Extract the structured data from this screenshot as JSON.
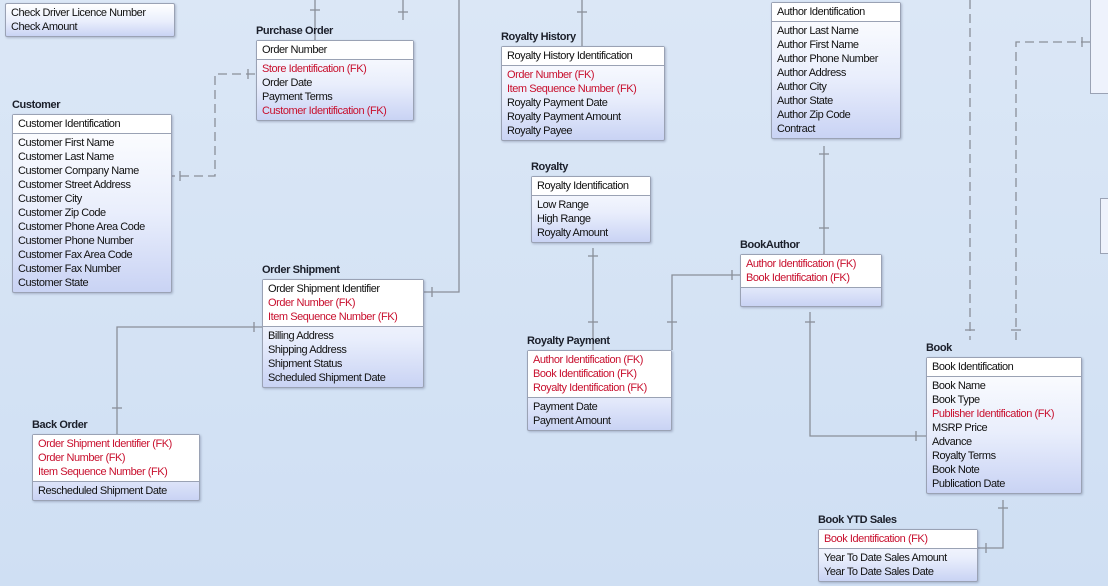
{
  "entities": [
    {
      "keys": [],
      "attrs": [
        {
          "text": "Check Driver Licence Number"
        },
        {
          "text": "Check Amount"
        }
      ]
    },
    {
      "title": "Purchase Order",
      "keys": [
        {
          "text": "Order Number"
        }
      ],
      "attrs": [
        {
          "text": "Store Identification (FK)",
          "fk": true
        },
        {
          "text": "Order Date"
        },
        {
          "text": "Payment Terms"
        },
        {
          "text": "Customer Identification (FK)",
          "fk": true
        }
      ]
    },
    {
      "title": "Customer",
      "keys": [
        {
          "text": "Customer Identification"
        }
      ],
      "attrs": [
        {
          "text": "Customer First Name"
        },
        {
          "text": "Customer Last Name"
        },
        {
          "text": "Customer Company Name"
        },
        {
          "text": "Customer Street Address"
        },
        {
          "text": "Customer City"
        },
        {
          "text": "Customer Zip Code"
        },
        {
          "text": "Customer Phone Area Code"
        },
        {
          "text": "Customer Phone Number"
        },
        {
          "text": "Customer Fax Area Code"
        },
        {
          "text": "Customer Fax Number"
        },
        {
          "text": "Customer State"
        }
      ]
    },
    {
      "title": "Royalty History",
      "keys": [
        {
          "text": "Royalty History Identification"
        }
      ],
      "attrs": [
        {
          "text": "Order Number (FK)",
          "fk": true
        },
        {
          "text": "Item Sequence Number (FK)",
          "fk": true
        },
        {
          "text": "Royalty Payment Date"
        },
        {
          "text": "Royalty Payment Amount"
        },
        {
          "text": "Royalty Payee"
        }
      ]
    },
    {
      "keys": [
        {
          "text": "Author Identification"
        }
      ],
      "attrs": [
        {
          "text": "Author Last Name"
        },
        {
          "text": "Author First Name"
        },
        {
          "text": "Author Phone Number"
        },
        {
          "text": "Author Address"
        },
        {
          "text": "Author City"
        },
        {
          "text": "Author State"
        },
        {
          "text": "Author Zip Code"
        },
        {
          "text": "Contract"
        }
      ]
    },
    {
      "title": "Royalty",
      "keys": [
        {
          "text": "Royalty Identification"
        }
      ],
      "attrs": [
        {
          "text": "Low Range"
        },
        {
          "text": "High Range"
        },
        {
          "text": "Royalty Amount"
        }
      ]
    },
    {
      "title": "BookAuthor",
      "keys": [
        {
          "text": "Author Identification (FK)",
          "fk": true
        },
        {
          "text": "Book Identification (FK)",
          "fk": true
        }
      ],
      "attrs": []
    },
    {
      "title": "Order Shipment",
      "keys": [
        {
          "text": "Order Shipment Identifier"
        },
        {
          "text": "Order Number (FK)",
          "fk": true
        },
        {
          "text": "Item Sequence Number (FK)",
          "fk": true
        }
      ],
      "attrs": [
        {
          "text": "Billing Address"
        },
        {
          "text": "Shipping Address"
        },
        {
          "text": "Shipment Status"
        },
        {
          "text": "Scheduled Shipment Date"
        }
      ]
    },
    {
      "title": "Royalty Payment",
      "keys": [
        {
          "text": "Author Identification (FK)",
          "fk": true
        },
        {
          "text": "Book Identification (FK)",
          "fk": true
        },
        {
          "text": "Royalty Identification (FK)",
          "fk": true
        }
      ],
      "attrs": [
        {
          "text": "Payment Date"
        },
        {
          "text": "Payment Amount"
        }
      ]
    },
    {
      "title": "Back Order",
      "keys": [
        {
          "text": "Order Shipment Identifier (FK)",
          "fk": true
        },
        {
          "text": "Order Number (FK)",
          "fk": true
        },
        {
          "text": "Item Sequence Number (FK)",
          "fk": true
        }
      ],
      "attrs": [
        {
          "text": "Rescheduled Shipment Date"
        }
      ]
    },
    {
      "title": "Book",
      "keys": [
        {
          "text": "Book Identification"
        }
      ],
      "attrs": [
        {
          "text": "Book Name"
        },
        {
          "text": "Book Type"
        },
        {
          "text": "Publisher Identification (FK)",
          "fk": true
        },
        {
          "text": "MSRP Price"
        },
        {
          "text": "Advance"
        },
        {
          "text": "Royalty Terms"
        },
        {
          "text": "Book Note"
        },
        {
          "text": "Publication Date"
        }
      ]
    },
    {
      "title": "Book YTD Sales",
      "keys": [
        {
          "text": "Book Identification (FK)",
          "fk": true
        }
      ],
      "attrs": [
        {
          "text": "Year To Date Sales Amount"
        },
        {
          "text": "Year To Date Sales Date"
        }
      ]
    }
  ]
}
